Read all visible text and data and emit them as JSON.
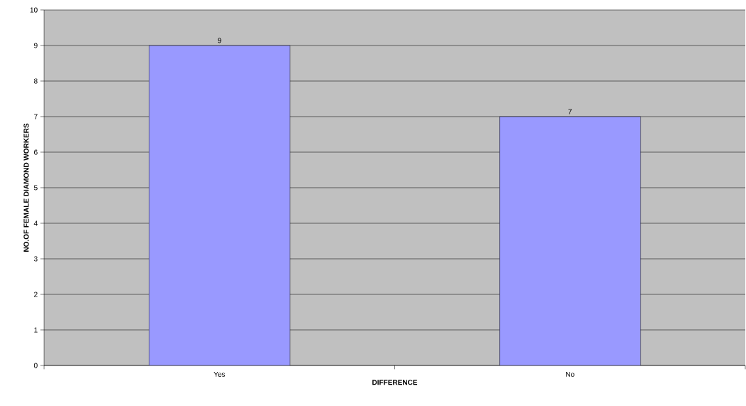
{
  "chart_data": {
    "type": "bar",
    "xlabel": "DIFFERENCE",
    "ylabel": "NO.OF FEMALE DIAMOND WORKERS",
    "categories": [
      "Yes",
      "No"
    ],
    "values": [
      9,
      7
    ],
    "color": "#9999ff",
    "ylim": [
      0,
      10
    ],
    "yticks": [
      0,
      1,
      2,
      3,
      4,
      5,
      6,
      7,
      8,
      9,
      10
    ],
    "grid": "y",
    "data_labels": true
  }
}
